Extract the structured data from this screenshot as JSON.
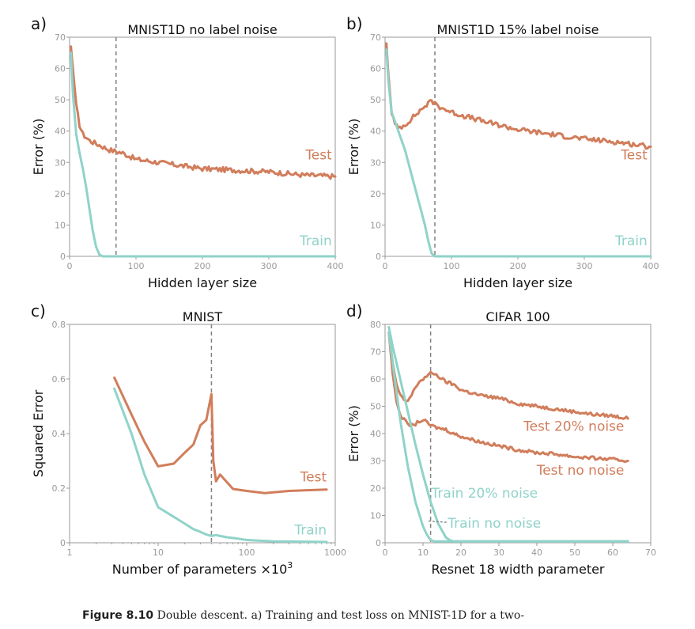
{
  "colors": {
    "test": "#d17d5b",
    "train": "#8fd3c9",
    "vline": "#808080",
    "axis": "#9a9a9a"
  },
  "caption": {
    "label": "Figure 8.10",
    "text": "Double descent. a) Training and test loss on MNIST-1D for a two-"
  },
  "chart_data": [
    {
      "panel": "a)",
      "type": "line",
      "title": "MNIST1D no label noise",
      "xlabel": "Hidden layer size",
      "ylabel": "Error (%)",
      "xlim": [
        0,
        400
      ],
      "ylim": [
        0,
        70
      ],
      "xticks": [
        0,
        100,
        200,
        300,
        400
      ],
      "yticks": [
        0,
        10,
        20,
        30,
        40,
        50,
        60,
        70
      ],
      "vline": 70,
      "series": [
        {
          "name": "Test",
          "color_key": "test",
          "noise": 0.8,
          "x": [
            2,
            5,
            10,
            15,
            20,
            30,
            40,
            50,
            60,
            70,
            80,
            100,
            150,
            200,
            250,
            300,
            350,
            400
          ],
          "y": [
            67,
            60,
            48,
            42,
            39,
            37,
            36,
            35,
            34,
            33.5,
            33,
            31,
            29.5,
            28,
            27.5,
            27,
            26,
            25.5
          ]
        },
        {
          "name": "Train",
          "color_key": "train",
          "noise": 0,
          "x": [
            2,
            5,
            10,
            15,
            20,
            25,
            30,
            35,
            40,
            45,
            50,
            100,
            200,
            300,
            400
          ],
          "y": [
            65,
            52,
            39,
            33,
            28,
            22,
            15,
            8,
            3,
            0.5,
            0,
            0,
            0,
            0,
            0
          ]
        }
      ],
      "annotations": [
        {
          "text": "Test",
          "color_key": "test",
          "x": 395,
          "y": 31
        },
        {
          "text": "Train",
          "color_key": "train",
          "x": 395,
          "y": 3.5
        }
      ]
    },
    {
      "panel": "b)",
      "type": "line",
      "title": "MNIST1D 15% label noise",
      "xlabel": "Hidden layer size",
      "ylabel": "Error (%)",
      "xlim": [
        0,
        400
      ],
      "ylim": [
        0,
        70
      ],
      "xticks": [
        0,
        100,
        200,
        300,
        400
      ],
      "yticks": [
        0,
        10,
        20,
        30,
        40,
        50,
        60,
        70
      ],
      "vline": 75,
      "series": [
        {
          "name": "Test",
          "color_key": "test",
          "noise": 0.8,
          "x": [
            2,
            5,
            10,
            15,
            20,
            30,
            40,
            50,
            60,
            70,
            75,
            80,
            100,
            150,
            200,
            250,
            300,
            350,
            400
          ],
          "y": [
            68,
            58,
            46,
            42,
            41,
            42,
            44,
            46,
            48,
            49.5,
            49,
            48,
            46,
            43,
            40.5,
            39,
            37.5,
            36.5,
            35
          ]
        },
        {
          "name": "Train",
          "color_key": "train",
          "noise": 0,
          "x": [
            2,
            5,
            10,
            15,
            20,
            30,
            40,
            50,
            60,
            65,
            70,
            75,
            80,
            200,
            300,
            400
          ],
          "y": [
            66,
            56,
            46,
            43,
            40,
            34,
            26,
            18,
            10,
            5,
            1,
            0,
            0,
            0,
            0,
            0
          ]
        }
      ],
      "annotations": [
        {
          "text": "Test",
          "color_key": "test",
          "x": 395,
          "y": 31
        },
        {
          "text": "Train",
          "color_key": "train",
          "x": 395,
          "y": 3.5
        }
      ]
    },
    {
      "panel": "c)",
      "type": "line",
      "xscale": "log",
      "title": "MNIST",
      "xlabel": "Number of parameters ×10",
      "xlabel_sup": "3",
      "ylabel": "Squared Error",
      "xlim": [
        1,
        1000
      ],
      "ylim": [
        0,
        0.8
      ],
      "xticks": [
        1,
        10,
        100,
        1000
      ],
      "yticks": [
        0,
        0.2,
        0.4,
        0.6,
        0.8
      ],
      "vline": 40,
      "series": [
        {
          "name": "Test",
          "color_key": "test",
          "noise": 0,
          "x": [
            3.2,
            5,
            7,
            10,
            15,
            20,
            25,
            30,
            35,
            40,
            42,
            45,
            50,
            70,
            100,
            160,
            300,
            800
          ],
          "y": [
            0.605,
            0.47,
            0.37,
            0.28,
            0.29,
            0.33,
            0.36,
            0.43,
            0.45,
            0.545,
            0.3,
            0.225,
            0.25,
            0.197,
            0.19,
            0.182,
            0.19,
            0.195
          ]
        },
        {
          "name": "Train",
          "color_key": "train",
          "noise": 0,
          "x": [
            3.2,
            5,
            7,
            10,
            15,
            20,
            25,
            30,
            35,
            40,
            45,
            50,
            60,
            80,
            100,
            200,
            800
          ],
          "y": [
            0.565,
            0.4,
            0.25,
            0.13,
            0.095,
            0.07,
            0.05,
            0.04,
            0.03,
            0.025,
            0.028,
            0.025,
            0.02,
            0.015,
            0.01,
            0.005,
            0.003
          ]
        }
      ],
      "annotations": [
        {
          "text": "Test",
          "color_key": "test",
          "x": 800,
          "y": 0.225
        },
        {
          "text": "Train",
          "color_key": "train",
          "x": 800,
          "y": 0.03
        }
      ]
    },
    {
      "panel": "d)",
      "type": "line",
      "title": "CIFAR 100",
      "xlabel": "Resnet 18 width parameter",
      "ylabel": "Error (%)",
      "xlim": [
        0,
        70
      ],
      "ylim": [
        0,
        80
      ],
      "xticks": [
        0,
        10,
        20,
        30,
        40,
        50,
        60,
        70
      ],
      "yticks": [
        0,
        10,
        20,
        30,
        40,
        50,
        60,
        70,
        80
      ],
      "vline": 12,
      "series": [
        {
          "name": "Test 20% noise",
          "color_key": "test",
          "noise": 0.6,
          "x": [
            1,
            2,
            3,
            4,
            5,
            6,
            7,
            8,
            9,
            10,
            11,
            12,
            13,
            14,
            16,
            18,
            20,
            25,
            30,
            35,
            40,
            45,
            50,
            55,
            60,
            64
          ],
          "y": [
            77,
            66,
            58,
            54,
            52,
            52,
            54,
            57,
            59,
            60,
            61,
            62,
            62,
            61,
            59,
            58,
            56,
            54,
            53,
            51,
            50,
            49,
            48,
            47,
            46.5,
            45.5
          ]
        },
        {
          "name": "Test no noise",
          "color_key": "test",
          "noise": 0.6,
          "x": [
            1,
            2,
            3,
            4,
            5,
            6,
            7,
            8,
            9,
            10,
            11,
            12,
            14,
            16,
            18,
            20,
            25,
            30,
            35,
            40,
            45,
            50,
            55,
            60,
            64
          ],
          "y": [
            77,
            62,
            52,
            47,
            45,
            43.5,
            43,
            43.5,
            44.5,
            45,
            44,
            43,
            42,
            41.5,
            40,
            39,
            37,
            35.5,
            34,
            33,
            32.5,
            31.5,
            31,
            30.5,
            30
          ]
        },
        {
          "name": "Train 20% noise",
          "color_key": "train",
          "noise": 0,
          "x": [
            1,
            2,
            4,
            6,
            8,
            10,
            12,
            14,
            16,
            17,
            18,
            20,
            30,
            64
          ],
          "y": [
            79,
            72,
            60,
            48,
            36,
            25,
            15,
            7,
            2,
            1,
            0.5,
            0.5,
            0.5,
            0.5
          ]
        },
        {
          "name": "Train no noise",
          "color_key": "train",
          "noise": 0,
          "x": [
            1,
            2,
            4,
            6,
            8,
            10,
            11,
            12,
            13,
            14,
            20,
            64
          ],
          "y": [
            77,
            66,
            45,
            28,
            15,
            6,
            3,
            1,
            0.5,
            0.5,
            0.5,
            0.5
          ]
        }
      ],
      "annotations": [
        {
          "text": "Test 20% noise",
          "color_key": "test",
          "x": 63,
          "y": 41
        },
        {
          "text": "Test no noise",
          "color_key": "test",
          "x": 63,
          "y": 25
        },
        {
          "text": "Train 20% noise",
          "color_key": "train",
          "x": 12.2,
          "y": 16.5
        },
        {
          "text": "Train no noise",
          "color_key": "train",
          "x": 16.5,
          "y": 5.5
        }
      ],
      "callout": {
        "from": [
          16.2,
          7.5
        ],
        "to": [
          11,
          8
        ]
      }
    }
  ]
}
